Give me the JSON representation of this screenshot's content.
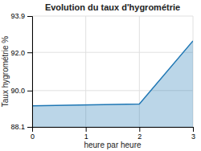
{
  "chart_data": {
    "type": "area",
    "title": "Evolution du taux d'hygrométrie",
    "xlabel": "heure par heure",
    "ylabel": "Taux hygrométrie %",
    "x": [
      0,
      2,
      3
    ],
    "values": [
      89.2,
      89.3,
      92.6
    ],
    "xlim": [
      0,
      3
    ],
    "ylim": [
      88.1,
      93.9
    ],
    "xticks": [
      0,
      1,
      2,
      3
    ],
    "yticks": [
      88.1,
      {
        "value": 90.0,
        "label": "90.0"
      },
      {
        "value": 92.0,
        "label": "92.0"
      },
      93.9
    ],
    "grid": true
  }
}
